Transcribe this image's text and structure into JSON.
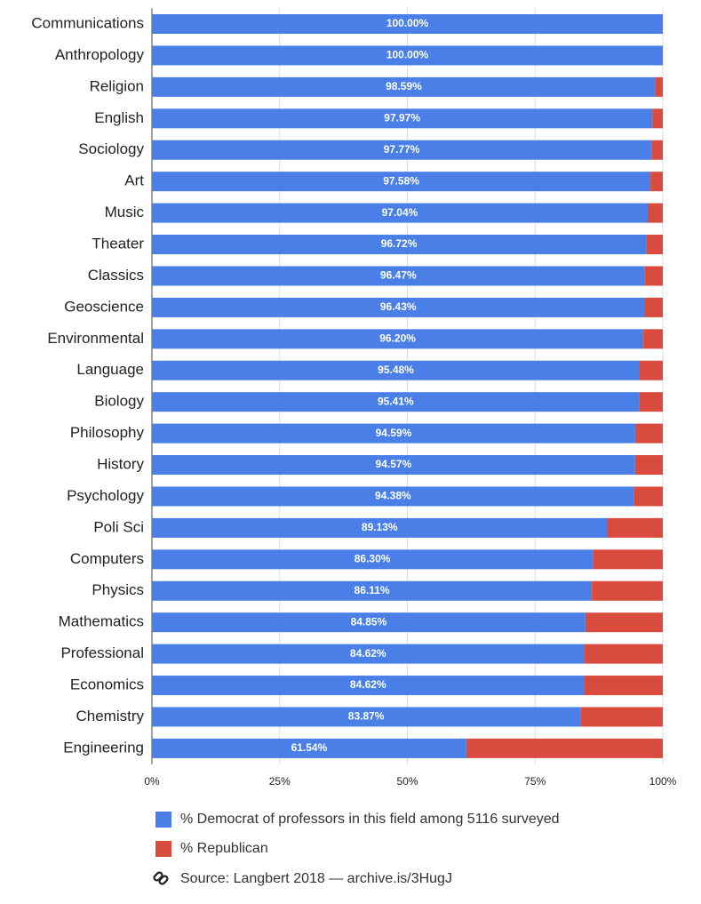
{
  "chart_data": {
    "type": "stacked-bar-horizontal",
    "categories": [
      "Communications",
      "Anthropology",
      "Religion",
      "English",
      "Sociology",
      "Art",
      "Music",
      "Theater",
      "Classics",
      "Geoscience",
      "Environmental",
      "Language",
      "Biology",
      "Philosophy",
      "History",
      "Psychology",
      "Poli Sci",
      "Computers",
      "Physics",
      "Mathematics",
      "Professional",
      "Economics",
      "Chemistry",
      "Engineering"
    ],
    "series": [
      {
        "name": "% Democrat of professors in this field among 5116 surveyed",
        "color": "#4a7fe8",
        "values": [
          100.0,
          100.0,
          98.59,
          97.97,
          97.77,
          97.58,
          97.04,
          96.72,
          96.47,
          96.43,
          96.2,
          95.48,
          95.41,
          94.59,
          94.57,
          94.38,
          89.13,
          86.3,
          86.11,
          84.85,
          84.62,
          84.62,
          83.87,
          61.54
        ],
        "value_labels": [
          "100.00%",
          "100.00%",
          "98.59%",
          "97.97%",
          "97.77%",
          "97.58%",
          "97.04%",
          "96.72%",
          "96.47%",
          "96.43%",
          "96.20%",
          "95.48%",
          "95.41%",
          "94.59%",
          "94.57%",
          "94.38%",
          "89.13%",
          "86.30%",
          "86.11%",
          "84.85%",
          "84.62%",
          "84.62%",
          "83.87%",
          "61.54%"
        ]
      },
      {
        "name": "% Republican",
        "color": "#d94c3d",
        "values": [
          0,
          0,
          1.41,
          2.03,
          2.23,
          2.42,
          2.96,
          3.28,
          3.53,
          3.57,
          3.8,
          4.52,
          4.59,
          5.41,
          5.43,
          5.62,
          10.87,
          13.7,
          13.89,
          15.15,
          15.38,
          15.38,
          16.13,
          38.46
        ]
      }
    ],
    "xlim": [
      0,
      100
    ],
    "xticks": [
      {
        "value": 0,
        "label": "0%"
      },
      {
        "value": 25,
        "label": "25%"
      },
      {
        "value": 50,
        "label": "50%"
      },
      {
        "value": 75,
        "label": "75%"
      },
      {
        "value": 100,
        "label": "100%"
      }
    ],
    "grid": true,
    "source": "Source: Langbert 2018 — archive.is/3HugJ"
  }
}
